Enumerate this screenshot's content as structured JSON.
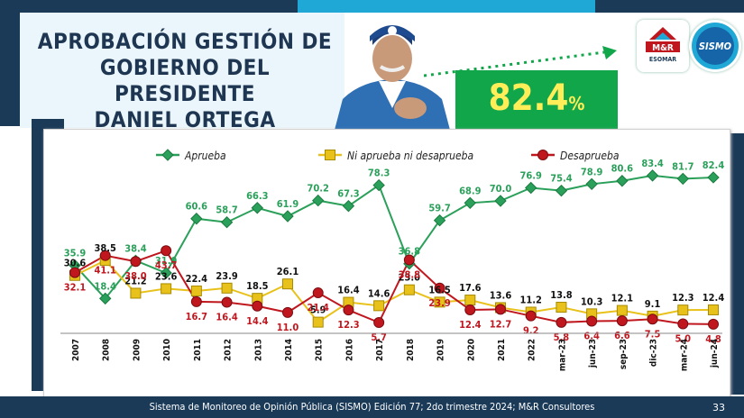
{
  "header": {
    "title_lines": [
      "APROBACIÓN GESTIÓN DE",
      "GOBIERNO DEL PRESIDENTE",
      "DANIEL ORTEGA"
    ],
    "highlight_value": "82.4",
    "highlight_unit": "%",
    "logos": {
      "mr": "M&R",
      "mr_sub": "ESOMAR",
      "sismo": "SISMO"
    }
  },
  "colors": {
    "aprueba": "#2aa05a",
    "neutral": "#e8c21a",
    "desaprueba": "#c0171f"
  },
  "chart_data": {
    "type": "line",
    "categories": [
      "2007",
      "2008",
      "2009",
      "2010",
      "2011",
      "2012",
      "2013",
      "2014",
      "2015",
      "2016",
      "2017",
      "2018",
      "2019",
      "2020",
      "2021",
      "2022",
      "mar-23",
      "jun-23",
      "sep-23",
      "dic-23",
      "mar-24",
      "jun-24"
    ],
    "series": [
      {
        "name": "Aprueba",
        "marker": "diamond",
        "values": [
          35.9,
          18.4,
          38.4,
          31.9,
          60.6,
          58.7,
          66.3,
          61.9,
          70.2,
          67.3,
          78.3,
          36.8,
          59.7,
          68.9,
          70.0,
          76.9,
          75.4,
          78.9,
          80.6,
          83.4,
          81.7,
          82.4
        ]
      },
      {
        "name": "Ni aprueba ni desaprueba",
        "marker": "square",
        "values": [
          30.6,
          38.5,
          21.2,
          23.6,
          22.4,
          23.9,
          18.5,
          26.1,
          5.9,
          16.4,
          14.6,
          23.0,
          16.5,
          17.6,
          13.6,
          11.2,
          13.8,
          10.3,
          12.1,
          9.1,
          12.3,
          12.4
        ]
      },
      {
        "name": "Desaprueba",
        "marker": "circle",
        "values": [
          32.1,
          41.1,
          38.0,
          43.7,
          16.7,
          16.4,
          14.4,
          11.0,
          21.4,
          12.3,
          5.7,
          38.8,
          23.9,
          12.4,
          12.7,
          9.2,
          5.8,
          6.4,
          6.6,
          7.5,
          5.0,
          4.8
        ]
      }
    ],
    "ylim": [
      0,
      100
    ],
    "grid": false,
    "legend": "top"
  },
  "footer": {
    "text": "Sistema de Monitoreo de Opinión Pública (SISMO) Edición 77; 2do trimestre 2024; M&R Consultores",
    "page": "33"
  }
}
